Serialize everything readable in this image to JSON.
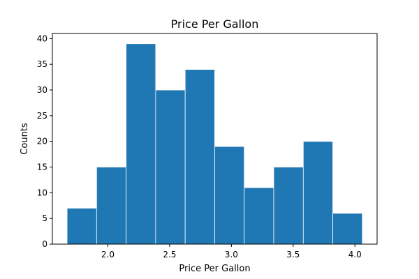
{
  "chart_data": {
    "type": "histogram",
    "title": "Price Per Gallon",
    "xlabel": "Price Per Gallon",
    "ylabel": "Counts",
    "bin_edges": [
      1.67,
      1.909,
      2.148,
      2.387,
      2.626,
      2.865,
      3.104,
      3.343,
      3.582,
      3.821,
      4.06
    ],
    "values": [
      7,
      15,
      39,
      30,
      34,
      19,
      11,
      15,
      20,
      6
    ],
    "xlim": [
      1.551,
      4.1795
    ],
    "ylim": [
      0,
      41
    ],
    "xticks": [
      "2.0",
      "2.5",
      "3.0",
      "3.5",
      "4.0"
    ],
    "yticks": [
      "0",
      "5",
      "10",
      "15",
      "20",
      "25",
      "30",
      "35",
      "40"
    ],
    "bar_color": "#1f77b4",
    "grid": false,
    "legend": "none"
  }
}
